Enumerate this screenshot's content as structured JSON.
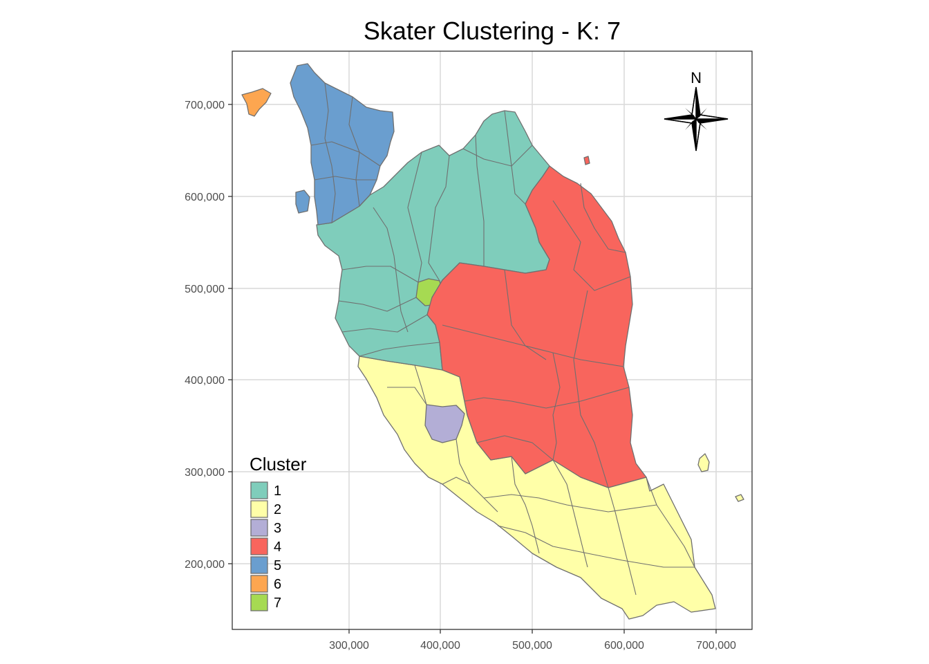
{
  "title": "Skater Clustering - K: 7",
  "axes": {
    "x_ticks": [
      "300,000",
      "400,000",
      "500,000",
      "600,000",
      "700,000"
    ],
    "y_ticks": [
      "700,000",
      "600,000",
      "500,000",
      "400,000",
      "300,000",
      "200,000"
    ]
  },
  "legend": {
    "title": "Cluster",
    "items": [
      {
        "label": "1",
        "color": "#7fcdbb"
      },
      {
        "label": "2",
        "color": "#ffffa8"
      },
      {
        "label": "3",
        "color": "#b3aed6"
      },
      {
        "label": "4",
        "color": "#f8655d"
      },
      {
        "label": "5",
        "color": "#6a9ecf"
      },
      {
        "label": "6",
        "color": "#fda650"
      },
      {
        "label": "7",
        "color": "#a6da52"
      }
    ]
  },
  "north_arrow": {
    "label": "N"
  },
  "colors": {
    "border": "#6f6f6f",
    "grid": "#d9d9d9",
    "panel_border": "#333333"
  }
}
